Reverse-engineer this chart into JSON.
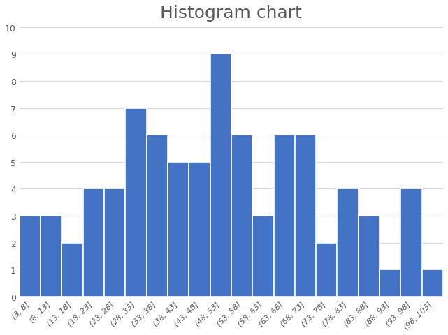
{
  "title": "Histogram chart",
  "title_fontsize": 18,
  "title_color": "#595959",
  "bar_color": "#4472C4",
  "bar_edgecolor": "#ffffff",
  "bar_linewidth": 1.2,
  "categories": [
    "(3, 8]",
    "(8, 13]",
    "(13, 18]",
    "(18, 23]",
    "(23, 28]",
    "(28, 33]",
    "(33, 38]",
    "(38, 43]",
    "(43, 48]",
    "(48, 53]",
    "(53, 58]",
    "(58, 63]",
    "(63, 68]",
    "(68, 73]",
    "(73, 78]",
    "(78, 83]",
    "(83, 88]",
    "(88, 93]",
    "(93, 98]",
    "(98, 103]"
  ],
  "values": [
    3,
    3,
    2,
    4,
    4,
    7,
    6,
    5,
    5,
    9,
    6,
    3,
    6,
    6,
    2,
    4,
    3,
    1,
    4,
    1
  ],
  "ylim": [
    0,
    10
  ],
  "yticks": [
    0,
    1,
    2,
    3,
    4,
    5,
    6,
    7,
    8,
    9,
    10
  ],
  "grid_color": "#d9d9d9",
  "grid_linewidth": 0.8,
  "tick_label_fontsize": 8,
  "tick_label_color": "#595959",
  "ytick_label_fontsize": 9,
  "background_color": "#ffffff",
  "figsize": [
    6.41,
    4.81
  ],
  "dpi": 100
}
